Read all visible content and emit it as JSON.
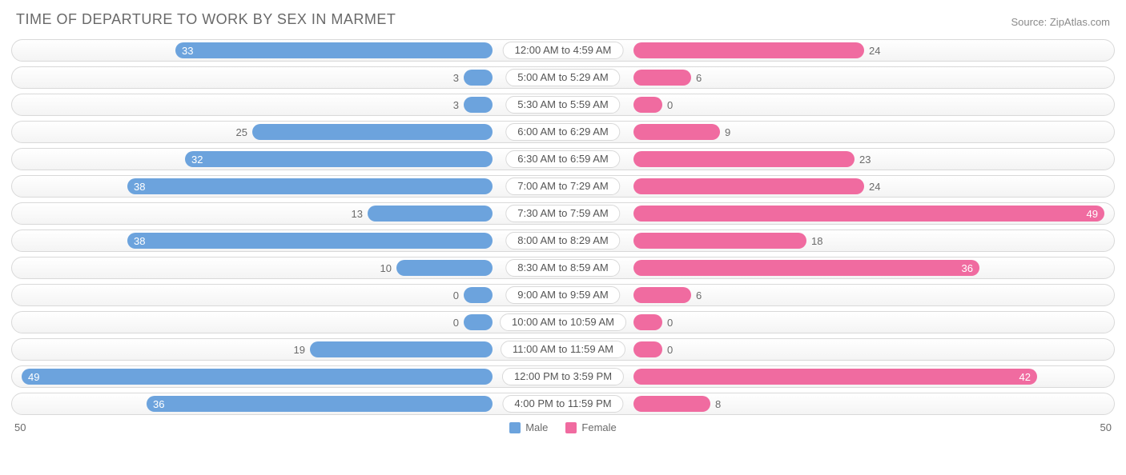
{
  "title": "TIME OF DEPARTURE TO WORK BY SEX IN MARMET",
  "source": "Source: ZipAtlas.com",
  "axis_max": 50,
  "axis_label_left": "50",
  "axis_label_right": "50",
  "colors": {
    "male": "#6ca3dd",
    "female": "#f06ba0",
    "row_border": "#d9d9d9",
    "text": "#6b6b6b",
    "title": "#696969"
  },
  "label_inside_threshold": 30,
  "legend": [
    {
      "label": "Male",
      "color": "#6ca3dd"
    },
    {
      "label": "Female",
      "color": "#f06ba0"
    }
  ],
  "rows": [
    {
      "category": "12:00 AM to 4:59 AM",
      "male": 33,
      "female": 24
    },
    {
      "category": "5:00 AM to 5:29 AM",
      "male": 3,
      "female": 6
    },
    {
      "category": "5:30 AM to 5:59 AM",
      "male": 3,
      "female": 0
    },
    {
      "category": "6:00 AM to 6:29 AM",
      "male": 25,
      "female": 9
    },
    {
      "category": "6:30 AM to 6:59 AM",
      "male": 32,
      "female": 23
    },
    {
      "category": "7:00 AM to 7:29 AM",
      "male": 38,
      "female": 24
    },
    {
      "category": "7:30 AM to 7:59 AM",
      "male": 13,
      "female": 49
    },
    {
      "category": "8:00 AM to 8:29 AM",
      "male": 38,
      "female": 18
    },
    {
      "category": "8:30 AM to 8:59 AM",
      "male": 10,
      "female": 36
    },
    {
      "category": "9:00 AM to 9:59 AM",
      "male": 0,
      "female": 6
    },
    {
      "category": "10:00 AM to 10:59 AM",
      "male": 0,
      "female": 0
    },
    {
      "category": "11:00 AM to 11:59 AM",
      "male": 19,
      "female": 0
    },
    {
      "category": "12:00 PM to 3:59 PM",
      "male": 49,
      "female": 42
    },
    {
      "category": "4:00 PM to 11:59 PM",
      "male": 36,
      "female": 8
    }
  ]
}
